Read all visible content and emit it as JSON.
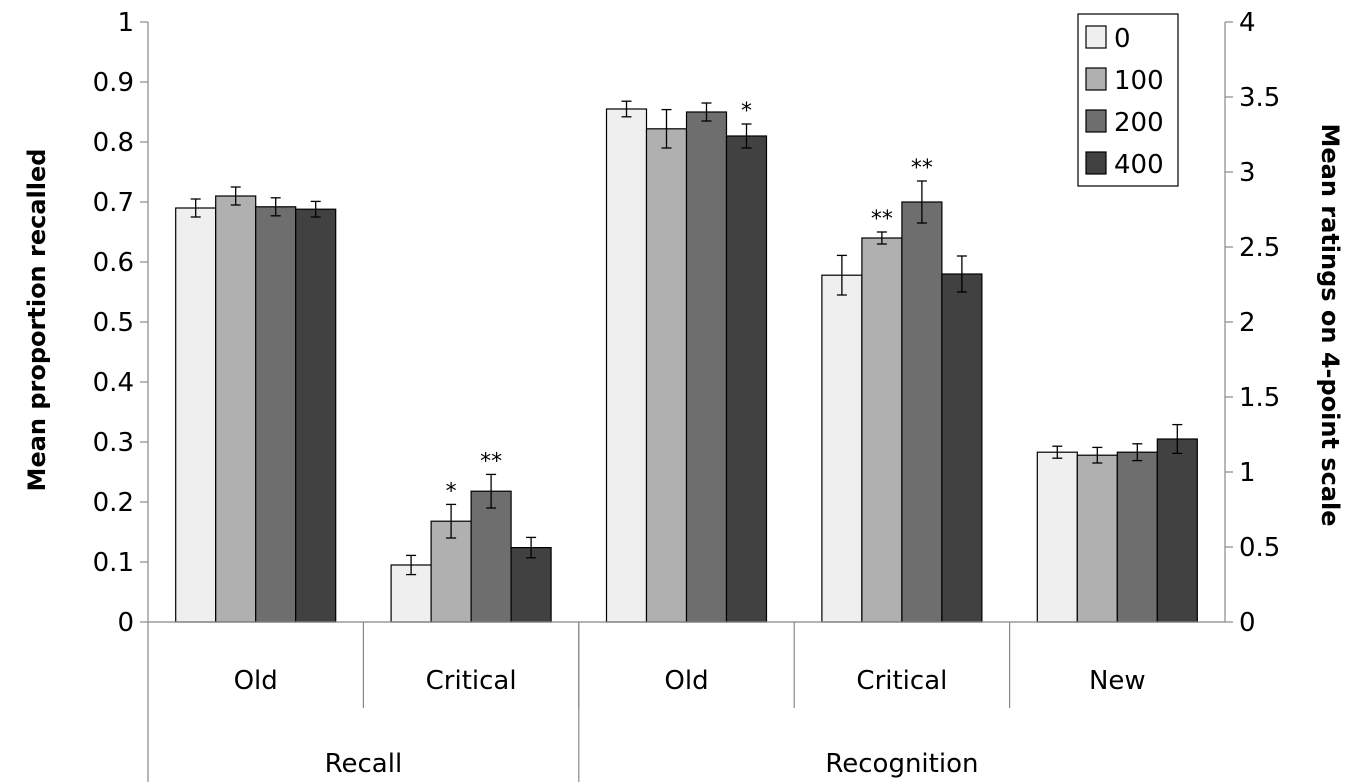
{
  "chart_data": {
    "type": "bar",
    "groups": [
      {
        "label": "Recall",
        "categories": [
          "Old",
          "Critical"
        ]
      },
      {
        "label": "Recognition",
        "categories": [
          "Old",
          "Critical",
          "New"
        ]
      }
    ],
    "categories": [
      "Old",
      "Critical",
      "Old",
      "Critical",
      "New"
    ],
    "series": [
      {
        "name": "0",
        "color": "#efefef",
        "values": [
          0.69,
          0.095,
          0.855,
          0.578,
          0.283
        ],
        "errors": [
          0.015,
          0.016,
          0.013,
          0.033,
          0.01
        ]
      },
      {
        "name": "100",
        "color": "#b0b0b0",
        "values": [
          0.71,
          0.168,
          0.822,
          0.64,
          0.278
        ],
        "errors": [
          0.015,
          0.028,
          0.032,
          0.01,
          0.013
        ]
      },
      {
        "name": "200",
        "color": "#6e6e6e",
        "values": [
          0.692,
          0.218,
          0.85,
          0.7,
          0.283
        ],
        "errors": [
          0.015,
          0.028,
          0.015,
          0.035,
          0.014
        ]
      },
      {
        "name": "400",
        "color": "#414141",
        "values": [
          0.688,
          0.124,
          0.81,
          0.58,
          0.305
        ],
        "errors": [
          0.013,
          0.017,
          0.02,
          0.03,
          0.024
        ]
      }
    ],
    "significance": [
      {
        "category": 1,
        "series": 1,
        "text": "*"
      },
      {
        "category": 1,
        "series": 2,
        "text": "**"
      },
      {
        "category": 2,
        "series": 3,
        "text": "*"
      },
      {
        "category": 3,
        "series": 1,
        "text": "**"
      },
      {
        "category": 3,
        "series": 2,
        "text": "**"
      }
    ],
    "ylabel": "Mean proportion  recalled",
    "y2label": "Mean  ratings on 4-point scale",
    "ylim": [
      0,
      1
    ],
    "y2lim": [
      0,
      4
    ],
    "yticks": [
      "0",
      "0.1",
      "0.2",
      "0.3",
      "0.4",
      "0.5",
      "0.6",
      "0.7",
      "0.8",
      "0.9",
      "1"
    ],
    "y2ticks": [
      "0",
      "0.5",
      "1",
      "1.5",
      "2",
      "2.5",
      "3",
      "3.5",
      "4"
    ],
    "legend_position": "top-right",
    "grid": false
  }
}
